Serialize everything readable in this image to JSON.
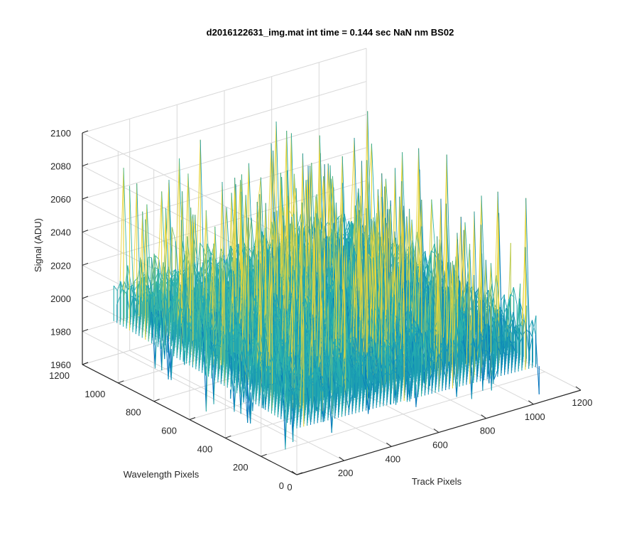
{
  "chart_data": {
    "type": "surface",
    "title": "d2016122631_img.mat int time = 0.144 sec  NaN nm BS02",
    "xlabel": "Track Pixels",
    "ylabel": "Wavelength Pixels",
    "zlabel": "Signal (ADU)",
    "xlim": [
      0,
      1200
    ],
    "ylim": [
      0,
      1200
    ],
    "zlim": [
      1960,
      2100
    ],
    "x_ticks": [
      0,
      200,
      400,
      600,
      800,
      1000,
      1200
    ],
    "y_ticks": [
      0,
      200,
      400,
      600,
      800,
      1000,
      1200
    ],
    "z_ticks": [
      1960,
      1980,
      2000,
      2020,
      2040,
      2060,
      2080,
      2100
    ],
    "x_tick_labels": [
      "0",
      "200",
      "400",
      "600",
      "800",
      "1000",
      "1200"
    ],
    "y_tick_labels": [
      "0",
      "200",
      "400",
      "600",
      "800",
      "1000",
      "1200"
    ],
    "z_tick_labels": [
      "1960",
      "1980",
      "2000",
      "2020",
      "2040",
      "2060",
      "2080",
      "2100"
    ],
    "grid": true,
    "colormap": "parula",
    "data_extent": {
      "x": [
        0,
        1024
      ],
      "y": [
        0,
        1024
      ]
    },
    "signal_baseline": 2010,
    "signal_spread": 20,
    "signal_min": 1965,
    "signal_max": 2090
  },
  "colors": {
    "axis": "#262626",
    "grid": "#d8d8d8",
    "low": "#0072bd",
    "mid": "#2ab3ad",
    "high": "#e6d43a"
  }
}
